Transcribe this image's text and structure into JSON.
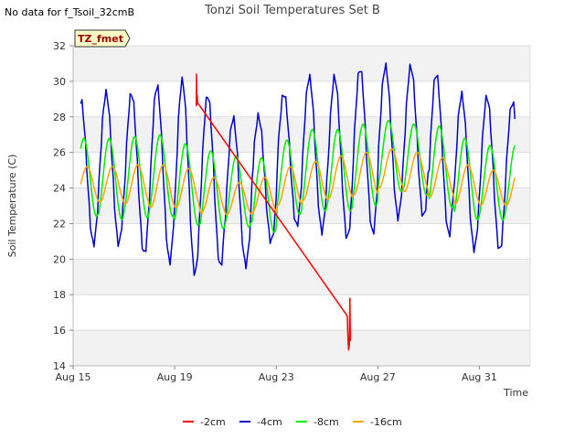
{
  "no_data_text": "No data for f_Tsoil_32cmB",
  "badge": "TZ_fmet",
  "chart_data": {
    "type": "line",
    "title": "Tonzi Soil Temperatures Set B",
    "xlabel": "Time",
    "ylabel": "Soil Temperature (C)",
    "ylim": [
      14,
      32
    ],
    "yticks": [
      14,
      16,
      18,
      20,
      22,
      24,
      26,
      28,
      30,
      32
    ],
    "xlim": [
      15,
      33
    ],
    "xticks": [
      {
        "day": 15,
        "label": "Aug 15"
      },
      {
        "day": 19,
        "label": "Aug 19"
      },
      {
        "day": 23,
        "label": "Aug 23"
      },
      {
        "day": 27,
        "label": "Aug 27"
      },
      {
        "day": 31,
        "label": "Aug 31"
      }
    ],
    "grid": true,
    "legend_position": "bottom",
    "series": [
      {
        "name": "-2cm",
        "color": "#ff0000",
        "x": [
          19.85,
          19.86,
          19.87,
          19.89,
          19.9,
          25.8,
          25.82,
          25.85,
          25.88,
          25.9,
          25.92
        ],
        "y": [
          28.6,
          30.4,
          28.7,
          29.2,
          28.8,
          16.8,
          15.6,
          14.9,
          15.2,
          17.8,
          15.4
        ]
      },
      {
        "name": "-4cm",
        "color": "#0000cc",
        "x_start": 15.3,
        "x_end": 32.4,
        "amplitudes": [
          [
            24.9,
            4.0
          ],
          [
            25.1,
            4.2
          ],
          [
            24.8,
            4.5
          ],
          [
            24.8,
            4.9
          ],
          [
            24.6,
            5.4
          ],
          [
            24.4,
            4.8
          ],
          [
            23.8,
            4.1
          ],
          [
            24.5,
            3.5
          ],
          [
            25.6,
            3.7
          ],
          [
            25.9,
            4.3
          ],
          [
            25.7,
            4.5
          ],
          [
            26.1,
            4.6
          ],
          [
            26.6,
            4.2
          ],
          [
            26.6,
            4.2
          ],
          [
            25.9,
            4.5
          ],
          [
            24.9,
            4.3
          ],
          [
            24.8,
            4.3
          ],
          [
            24.9,
            3.9
          ]
        ]
      },
      {
        "name": "-8cm",
        "color": "#00ee00",
        "x_start": 15.3,
        "x_end": 32.4,
        "amplitudes": [
          [
            24.6,
            2.2
          ],
          [
            24.5,
            2.3
          ],
          [
            24.6,
            2.3
          ],
          [
            24.7,
            2.3
          ],
          [
            24.2,
            2.3
          ],
          [
            23.9,
            2.2
          ],
          [
            23.8,
            2.0
          ],
          [
            23.6,
            2.1
          ],
          [
            24.6,
            2.1
          ],
          [
            25.0,
            2.3
          ],
          [
            25.0,
            2.3
          ],
          [
            25.3,
            2.3
          ],
          [
            25.8,
            2.0
          ],
          [
            25.6,
            2.0
          ],
          [
            25.2,
            2.3
          ],
          [
            24.5,
            2.3
          ],
          [
            24.3,
            2.1
          ],
          [
            24.3,
            2.1
          ]
        ]
      },
      {
        "name": "-16cm",
        "color": "#ffa500",
        "x_start": 15.3,
        "x_end": 32.4,
        "amplitudes": [
          [
            24.2,
            1.0
          ],
          [
            24.2,
            1.0
          ],
          [
            24.2,
            1.1
          ],
          [
            24.1,
            1.2
          ],
          [
            24.0,
            1.1
          ],
          [
            23.6,
            1.0
          ],
          [
            23.4,
            0.9
          ],
          [
            23.6,
            1.0
          ],
          [
            24.1,
            1.1
          ],
          [
            24.4,
            1.1
          ],
          [
            24.6,
            1.2
          ],
          [
            24.8,
            1.2
          ],
          [
            25.1,
            1.1
          ],
          [
            24.9,
            1.1
          ],
          [
            24.6,
            1.1
          ],
          [
            24.2,
            1.1
          ],
          [
            24.0,
            1.0
          ],
          [
            24.0,
            1.0
          ]
        ]
      }
    ]
  }
}
